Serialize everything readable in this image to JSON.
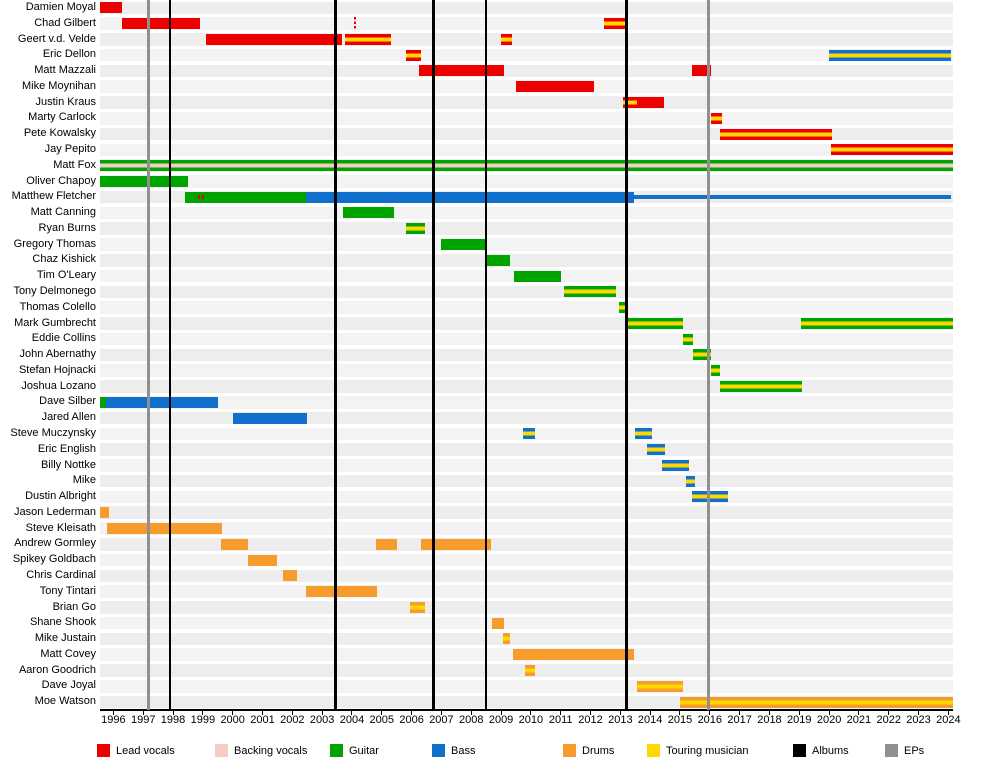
{
  "chart_data": {
    "type": "bar",
    "subtype": "band-member-timeline-gantt",
    "title": "",
    "axis": {
      "start": 1995.55,
      "end": 2024.15,
      "tick_years": [
        1996,
        1997,
        1998,
        1999,
        2000,
        2001,
        2002,
        2003,
        2004,
        2005,
        2006,
        2007,
        2008,
        2009,
        2010,
        2011,
        2012,
        2013,
        2014,
        2015,
        2016,
        2017,
        2018,
        2019,
        2020,
        2021,
        2022,
        2023,
        2024
      ]
    },
    "colors": {
      "lead_vocals": "#ee0000",
      "backing_vocals": "#f5cdc4",
      "guitar": "#00a400",
      "bass": "#1170cc",
      "drums": "#f89b2d",
      "touring": "#ffd800",
      "albums": "#000000",
      "eps": "#909090"
    },
    "legend": [
      {
        "label": "Lead vocals",
        "key": "lead_vocals"
      },
      {
        "label": "Backing vocals",
        "key": "backing_vocals"
      },
      {
        "label": "Guitar",
        "key": "guitar"
      },
      {
        "label": "Bass",
        "key": "bass"
      },
      {
        "label": "Drums",
        "key": "drums"
      },
      {
        "label": "Touring musician",
        "key": "touring"
      },
      {
        "label": "Albums",
        "key": "albums"
      },
      {
        "label": "EPs",
        "key": "eps"
      }
    ],
    "albums": [
      1997.9,
      2003.45,
      2006.73,
      2008.5,
      2013.2
    ],
    "eps": [
      1997.17,
      2015.95
    ],
    "members": [
      {
        "name": "Damien Moyal",
        "segments": [
          {
            "from": 1995.55,
            "to": 1996.3,
            "role": "lead_vocals"
          }
        ]
      },
      {
        "name": "Chad Gilbert",
        "segments": [
          {
            "from": 1996.3,
            "to": 1998.9,
            "role": "lead_vocals"
          },
          {
            "from": 2012.45,
            "to": 2013.2,
            "role": "lead_vocals",
            "touring": true
          }
        ],
        "markers": [
          {
            "at": 2004.1,
            "role": "lead_vocals",
            "style": "dashed-vertical"
          }
        ]
      },
      {
        "name": "Geert v.d. Velde",
        "segments": [
          {
            "from": 1999.1,
            "to": 2003.65,
            "role": "lead_vocals"
          },
          {
            "from": 2003.75,
            "to": 2005.3,
            "role": "lead_vocals",
            "touring": true
          },
          {
            "from": 2009.0,
            "to": 2009.35,
            "role": "lead_vocals",
            "touring": true
          }
        ]
      },
      {
        "name": "Eric Dellon",
        "segments": [
          {
            "from": 2005.8,
            "to": 2006.3,
            "role": "lead_vocals",
            "touring": true
          },
          {
            "from": 2020.0,
            "to": 2024.1,
            "role": "bass",
            "touring": true
          }
        ]
      },
      {
        "name": "Matt Mazzali",
        "segments": [
          {
            "from": 2006.25,
            "to": 2009.1,
            "role": "lead_vocals"
          },
          {
            "from": 2015.4,
            "to": 2016.05,
            "role": "lead_vocals"
          }
        ]
      },
      {
        "name": "Mike Moynihan",
        "segments": [
          {
            "from": 2009.5,
            "to": 2012.1,
            "role": "lead_vocals"
          }
        ]
      },
      {
        "name": "Justin Kraus",
        "segments": [
          {
            "from": 2013.1,
            "to": 2013.55,
            "role": "lead_vocals",
            "touring": true
          },
          {
            "from": 2013.55,
            "to": 2014.45,
            "role": "lead_vocals"
          }
        ]
      },
      {
        "name": "Marty Carlock",
        "segments": [
          {
            "from": 2016.05,
            "to": 2016.4,
            "role": "lead_vocals",
            "touring": true
          }
        ]
      },
      {
        "name": "Pete Kowalsky",
        "segments": [
          {
            "from": 2016.35,
            "to": 2020.1,
            "role": "lead_vocals",
            "touring": true
          }
        ]
      },
      {
        "name": "Jay Pepito",
        "segments": [
          {
            "from": 2020.05,
            "to": 2024.15,
            "role": "lead_vocals",
            "touring": true
          }
        ]
      },
      {
        "name": "Matt Fox",
        "segments": [
          {
            "from": 1995.55,
            "to": 2024.15,
            "role": "guitar",
            "stripe": "backing_vocals"
          }
        ]
      },
      {
        "name": "Oliver Chapoy",
        "segments": [
          {
            "from": 1995.55,
            "to": 1998.5,
            "role": "guitar"
          }
        ]
      },
      {
        "name": "Matthew Fletcher",
        "segments": [
          {
            "from": 1998.4,
            "to": 2002.45,
            "role": "guitar"
          },
          {
            "from": 2002.45,
            "to": 2013.45,
            "role": "bass"
          },
          {
            "from": 2013.45,
            "to": 2024.1,
            "role": "bass",
            "thin": true
          }
        ],
        "markers": [
          {
            "at": 1998.95,
            "role": "lead_vocals",
            "style": "dashed-horizontal"
          }
        ]
      },
      {
        "name": "Matt Canning",
        "segments": [
          {
            "from": 2003.7,
            "to": 2005.4,
            "role": "guitar"
          }
        ]
      },
      {
        "name": "Ryan Burns",
        "segments": [
          {
            "from": 2005.8,
            "to": 2006.45,
            "role": "guitar",
            "touring": true
          }
        ]
      },
      {
        "name": "Gregory Thomas",
        "segments": [
          {
            "from": 2007.0,
            "to": 2008.5,
            "role": "guitar"
          }
        ]
      },
      {
        "name": "Chaz Kishick",
        "segments": [
          {
            "from": 2008.5,
            "to": 2009.3,
            "role": "guitar"
          }
        ]
      },
      {
        "name": "Tim O'Leary",
        "segments": [
          {
            "from": 2009.45,
            "to": 2011.0,
            "role": "guitar"
          }
        ]
      },
      {
        "name": "Tony Delmonego",
        "segments": [
          {
            "from": 2011.1,
            "to": 2012.85,
            "role": "guitar",
            "touring": true
          }
        ]
      },
      {
        "name": "Thomas Colello",
        "segments": [
          {
            "from": 2012.95,
            "to": 2013.2,
            "role": "guitar",
            "touring": true
          }
        ]
      },
      {
        "name": "Mark Gumbrecht",
        "segments": [
          {
            "from": 2013.2,
            "to": 2015.1,
            "role": "guitar",
            "touring": true
          },
          {
            "from": 2019.05,
            "to": 2024.15,
            "role": "guitar",
            "touring": true
          }
        ]
      },
      {
        "name": "Eddie Collins",
        "segments": [
          {
            "from": 2015.1,
            "to": 2015.45,
            "role": "guitar",
            "touring": true
          }
        ]
      },
      {
        "name": "John Abernathy",
        "segments": [
          {
            "from": 2015.45,
            "to": 2016.05,
            "role": "guitar",
            "touring": true
          }
        ]
      },
      {
        "name": "Stefan Hojnacki",
        "segments": [
          {
            "from": 2016.05,
            "to": 2016.35,
            "role": "guitar",
            "touring": true
          }
        ]
      },
      {
        "name": "Joshua Lozano",
        "segments": [
          {
            "from": 2016.35,
            "to": 2019.1,
            "role": "guitar",
            "touring": true
          }
        ]
      },
      {
        "name": "Dave Silber",
        "segments": [
          {
            "from": 1995.55,
            "to": 1995.75,
            "role": "guitar"
          },
          {
            "from": 1995.75,
            "to": 1999.5,
            "role": "bass"
          }
        ]
      },
      {
        "name": "Jared Allen",
        "segments": [
          {
            "from": 2000.0,
            "to": 2002.5,
            "role": "bass"
          }
        ]
      },
      {
        "name": "Steve Muczynsky",
        "segments": [
          {
            "from": 2009.75,
            "to": 2010.15,
            "role": "bass",
            "touring": true
          },
          {
            "from": 2013.5,
            "to": 2014.05,
            "role": "bass",
            "touring": true
          }
        ]
      },
      {
        "name": "Eric English",
        "segments": [
          {
            "from": 2013.9,
            "to": 2014.5,
            "role": "bass",
            "touring": true
          }
        ]
      },
      {
        "name": "Billy Nottke",
        "segments": [
          {
            "from": 2014.4,
            "to": 2015.3,
            "role": "bass",
            "touring": true
          }
        ]
      },
      {
        "name": "Mike",
        "segments": [
          {
            "from": 2015.2,
            "to": 2015.5,
            "role": "bass",
            "touring": true
          }
        ]
      },
      {
        "name": "Dustin Albright",
        "segments": [
          {
            "from": 2015.4,
            "to": 2016.6,
            "role": "bass",
            "touring": true
          }
        ]
      },
      {
        "name": "Jason Lederman",
        "segments": [
          {
            "from": 1995.55,
            "to": 1995.85,
            "role": "drums"
          }
        ]
      },
      {
        "name": "Steve Kleisath",
        "segments": [
          {
            "from": 1995.8,
            "to": 1999.65,
            "role": "drums"
          }
        ]
      },
      {
        "name": "Andrew Gormley",
        "segments": [
          {
            "from": 1999.6,
            "to": 2000.5,
            "role": "drums"
          },
          {
            "from": 2004.8,
            "to": 2005.5,
            "role": "drums"
          },
          {
            "from": 2006.3,
            "to": 2008.65,
            "role": "drums"
          }
        ]
      },
      {
        "name": "Spikey Goldbach",
        "segments": [
          {
            "from": 2000.5,
            "to": 2001.5,
            "role": "drums"
          }
        ]
      },
      {
        "name": "Chris Cardinal",
        "segments": [
          {
            "from": 2001.7,
            "to": 2002.15,
            "role": "drums"
          }
        ]
      },
      {
        "name": "Tony Tintari",
        "segments": [
          {
            "from": 2002.45,
            "to": 2004.85,
            "role": "drums"
          }
        ]
      },
      {
        "name": "Brian Go",
        "segments": [
          {
            "from": 2005.95,
            "to": 2006.45,
            "role": "drums",
            "touring": true
          }
        ]
      },
      {
        "name": "Shane Shook",
        "segments": [
          {
            "from": 2008.7,
            "to": 2009.1,
            "role": "drums"
          }
        ]
      },
      {
        "name": "Mike Justain",
        "segments": [
          {
            "from": 2009.05,
            "to": 2009.3,
            "role": "drums",
            "touring": true
          }
        ]
      },
      {
        "name": "Matt Covey",
        "segments": [
          {
            "from": 2009.4,
            "to": 2013.45,
            "role": "drums"
          }
        ]
      },
      {
        "name": "Aaron Goodrich",
        "segments": [
          {
            "from": 2009.8,
            "to": 2010.15,
            "role": "drums",
            "touring": true
          }
        ]
      },
      {
        "name": "Dave Joyal",
        "segments": [
          {
            "from": 2013.55,
            "to": 2015.1,
            "role": "drums",
            "touring": true
          }
        ]
      },
      {
        "name": "Moe Watson",
        "segments": [
          {
            "from": 2015.0,
            "to": 2024.15,
            "role": "drums",
            "touring": true
          }
        ]
      }
    ]
  }
}
